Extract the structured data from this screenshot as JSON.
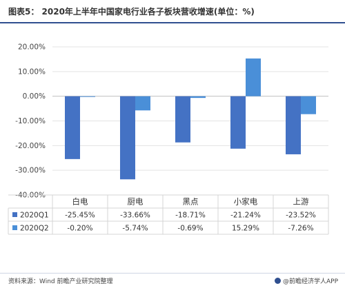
{
  "header": {
    "title": "图表5： 2020年上半年中国家电行业各子板块营收增速(单位：%)"
  },
  "chart_data": {
    "type": "bar",
    "title": "图表5： 2020年上半年中国家电行业各子板块营收增速(单位：%)",
    "categories": [
      "白电",
      "厨电",
      "黑点",
      "小家电",
      "上游"
    ],
    "series": [
      {
        "name": "2020Q1",
        "values": [
          -25.45,
          -33.66,
          -18.71,
          -21.24,
          -23.52
        ],
        "labels": [
          "-25.45%",
          "-33.66%",
          "-18.71%",
          "-21.24%",
          "-23.52%"
        ],
        "color": "#4472C4"
      },
      {
        "name": "2020Q2",
        "values": [
          -0.2,
          -5.74,
          -0.69,
          15.29,
          -7.26
        ],
        "labels": [
          "-0.20%",
          "-5.74%",
          "-0.69%",
          "15.29%",
          "-7.26%"
        ],
        "color": "#4A8FD8"
      }
    ],
    "ylim": [
      -40,
      20
    ],
    "yticks": [
      20,
      10,
      0,
      -10,
      -20,
      -30,
      -40
    ],
    "ytick_labels": [
      "20.00%",
      "10.00%",
      "0.00%",
      "-10.00%",
      "-20.00%",
      "-30.00%",
      "-40.00%"
    ],
    "grid": true,
    "legend": "data-table"
  },
  "footer": {
    "source": "资料来源：Wind 前瞻产业研究院整理",
    "brand": "@前瞻经济学人APP"
  }
}
